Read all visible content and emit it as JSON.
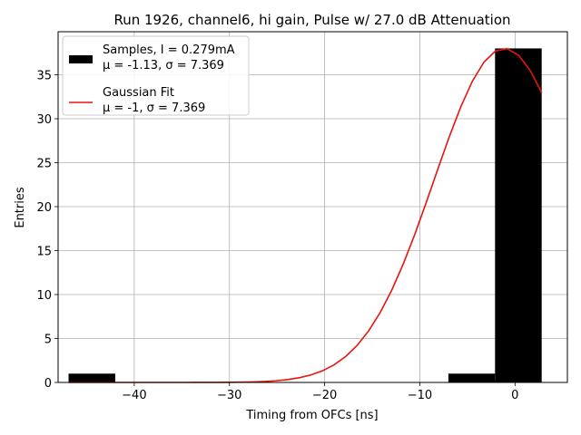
{
  "chart_data": {
    "type": "bar",
    "title": "Run 1926, channel6, hi gain, Pulse w/ 27.0 dB Attenuation",
    "xlabel": "Timing from OFCs [ns]",
    "ylabel": "Entries",
    "xlim": [
      -48,
      5.5
    ],
    "ylim": [
      0,
      39.9
    ],
    "xticks": [
      -40,
      -30,
      -20,
      -10,
      0
    ],
    "xtick_labels": [
      "−40",
      "−30",
      "−20",
      "−10",
      "0"
    ],
    "yticks": [
      0,
      5,
      10,
      15,
      20,
      25,
      30,
      35
    ],
    "ytick_labels": [
      "0",
      "5",
      "10",
      "15",
      "20",
      "25",
      "30",
      "35"
    ],
    "grid": true,
    "legend_position": "top-left",
    "bars": [
      {
        "x0": -46.9,
        "x1": -42.0,
        "value": 1
      },
      {
        "x0": -7.0,
        "x1": -2.1,
        "value": 1
      },
      {
        "x0": -2.1,
        "x1": 2.8,
        "value": 38
      }
    ],
    "bar_color": "#000000",
    "fit_color": "#e8130e",
    "fit": {
      "mu": -1.13,
      "sigma": 7.369,
      "amplitude": 38.0,
      "x_start": -46.9,
      "x_end": 2.8
    },
    "legend": [
      {
        "kind": "bar",
        "line1": "Samples, I = 0.279mA",
        "line2": "μ = -1.13, σ = 7.369"
      },
      {
        "kind": "line",
        "line1": "Gaussian Fit",
        "line2": "μ = -1, σ = 7.369"
      }
    ]
  }
}
